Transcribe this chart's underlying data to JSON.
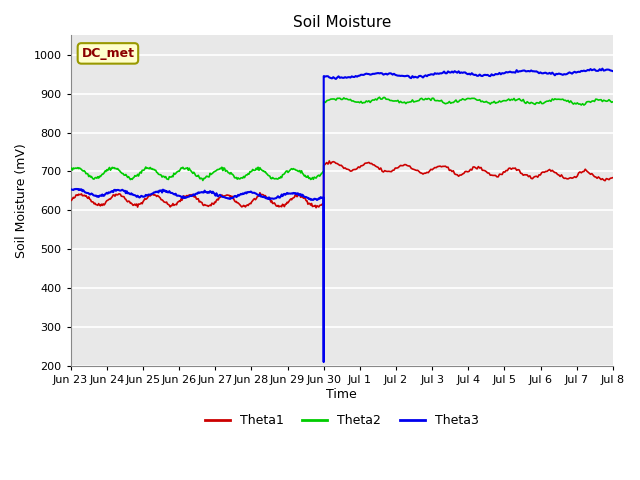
{
  "title": "Soil Moisture",
  "xlabel": "Time",
  "ylabel": "Soil Moisture (mV)",
  "ylim": [
    200,
    1050
  ],
  "yticks": [
    200,
    300,
    400,
    500,
    600,
    700,
    800,
    900,
    1000
  ],
  "bg_color": "#e8e8e8",
  "grid_color": "white",
  "annotation_text": "DC_met",
  "annotation_bg": "#ffffcc",
  "annotation_border": "#999900",
  "line_colors": {
    "Theta1": "#cc0000",
    "Theta2": "#00cc00",
    "Theta3": "#0000ee"
  },
  "legend_labels": [
    "Theta1",
    "Theta2",
    "Theta3"
  ],
  "tick_labels": [
    "Jun 23",
    "Jun 24",
    "Jun 25",
    "Jun 26",
    "Jun 27",
    "Jun 28",
    "Jun 29",
    "Jun 30",
    "Jul 1",
    "Jul 2",
    "Jul 3",
    "Jul 4",
    "Jul 5",
    "Jul 6",
    "Jul 7",
    "Jul 8"
  ],
  "figsize": [
    6.4,
    4.8
  ],
  "dpi": 100
}
